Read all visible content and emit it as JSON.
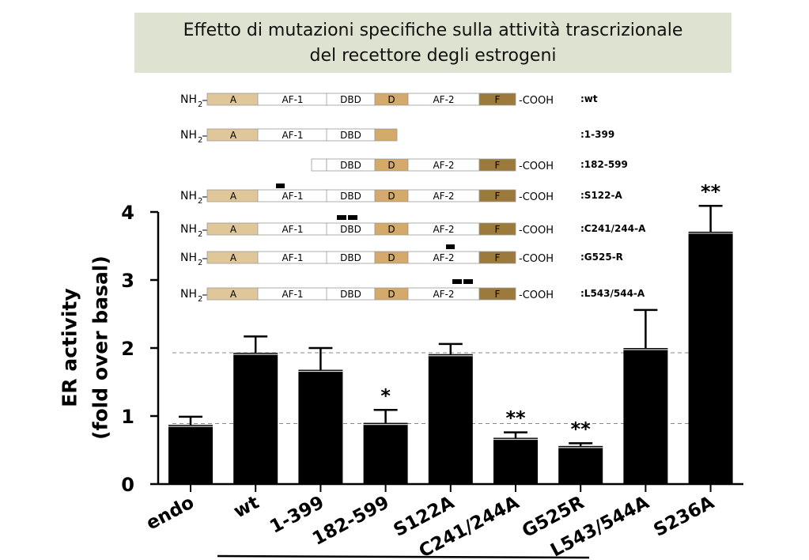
{
  "title": {
    "line1": "Effetto di mutazioni specifiche sulla attività trascrizionale",
    "line2": "del recettore degli estrogeni"
  },
  "chart_data": {
    "type": "bar",
    "categories": [
      "endo",
      "wt",
      "1-399",
      "182-599",
      "S122A",
      "C241/244A",
      "G525R",
      "L543/544A",
      "S236A"
    ],
    "values": [
      0.87,
      1.93,
      1.68,
      0.9,
      1.91,
      0.68,
      0.56,
      2.0,
      3.71
    ],
    "errors": [
      0.12,
      0.24,
      0.32,
      0.19,
      0.15,
      0.08,
      0.04,
      0.56,
      0.38
    ],
    "significance": [
      "",
      "",
      "",
      "*",
      "",
      "**",
      "**",
      "",
      "**"
    ],
    "ylabel_line1": "ER activity",
    "ylabel_line2": "(fold over basal)",
    "xlabel": "",
    "ylim": [
      0,
      4
    ],
    "yticks": [
      "0",
      "1",
      "2",
      "3",
      "4"
    ],
    "reference_lines": [
      1.93,
      0.89
    ],
    "bar_color": "#000000"
  },
  "schematic": {
    "nh2": "NH",
    "nh2_sub": "2",
    "cooh": "-COOH",
    "constructs": [
      {
        "label": ":wt",
        "domains": [
          "A",
          "AF-1",
          "DBD",
          "D",
          "AF-2",
          "F"
        ],
        "cooh": true,
        "nh2": true,
        "marks": ""
      },
      {
        "label": ":1-399",
        "domains": [
          "A",
          "AF-1",
          "DBD",
          ""
        ],
        "cooh": false,
        "nh2": true,
        "marks": ""
      },
      {
        "label": ":182-599",
        "domains": [
          "",
          "DBD",
          "D",
          "AF-2",
          "F"
        ],
        "cooh": true,
        "nh2": false,
        "marks": ""
      },
      {
        "label": ":S122-A",
        "domains": [
          "A",
          "AF-1",
          "DBD",
          "D",
          "AF-2",
          "F"
        ],
        "cooh": true,
        "nh2": true,
        "marks": "AF-1"
      },
      {
        "label": ":C241/244-A",
        "domains": [
          "A",
          "AF-1",
          "DBD",
          "D",
          "AF-2",
          "F"
        ],
        "cooh": true,
        "nh2": true,
        "marks": "DBD"
      },
      {
        "label": ":G525-R",
        "domains": [
          "A",
          "AF-1",
          "DBD",
          "D",
          "AF-2",
          "F"
        ],
        "cooh": true,
        "nh2": true,
        "marks": "AF-2"
      },
      {
        "label": ":L543/544-A",
        "domains": [
          "A",
          "AF-1",
          "DBD",
          "D",
          "AF-2",
          "F"
        ],
        "cooh": true,
        "nh2": true,
        "marks": "AF-2b"
      }
    ],
    "colors": {
      "A": "#e0c79a",
      "D": "#d4aa6a",
      "F": "#9c7a3c",
      "plain": "#ffffff"
    }
  }
}
